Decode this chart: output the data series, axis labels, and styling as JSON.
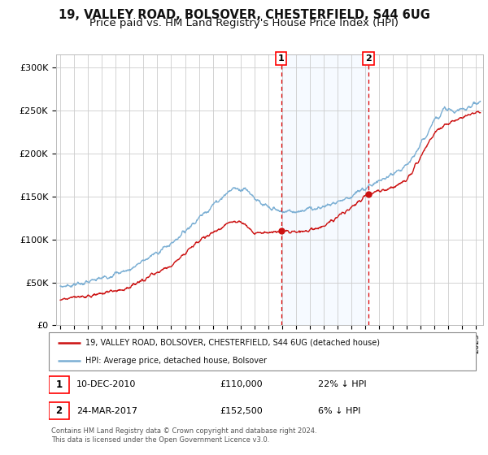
{
  "title": "19, VALLEY ROAD, BOLSOVER, CHESTERFIELD, S44 6UG",
  "subtitle": "Price paid vs. HM Land Registry's House Price Index (HPI)",
  "ylabel_ticks": [
    "£0",
    "£50K",
    "£100K",
    "£150K",
    "£200K",
    "£250K",
    "£300K"
  ],
  "ytick_values": [
    0,
    50000,
    100000,
    150000,
    200000,
    250000,
    300000
  ],
  "ylim": [
    0,
    315000
  ],
  "xlim_start": 1994.7,
  "xlim_end": 2025.5,
  "hpi_color": "#7bafd4",
  "price_color": "#cc1111",
  "shade_color": "#ddeeff",
  "vline_color": "#dd0000",
  "sale1_date": 2010.94,
  "sale1_price": 110000,
  "sale2_date": 2017.23,
  "sale2_price": 152500,
  "legend_line1": "19, VALLEY ROAD, BOLSOVER, CHESTERFIELD, S44 6UG (detached house)",
  "legend_line2": "HPI: Average price, detached house, Bolsover",
  "footnote": "Contains HM Land Registry data © Crown copyright and database right 2024.\nThis data is licensed under the Open Government Licence v3.0.",
  "title_fontsize": 10.5,
  "subtitle_fontsize": 9.5,
  "tick_fontsize": 8,
  "bg_color": "#ffffff"
}
